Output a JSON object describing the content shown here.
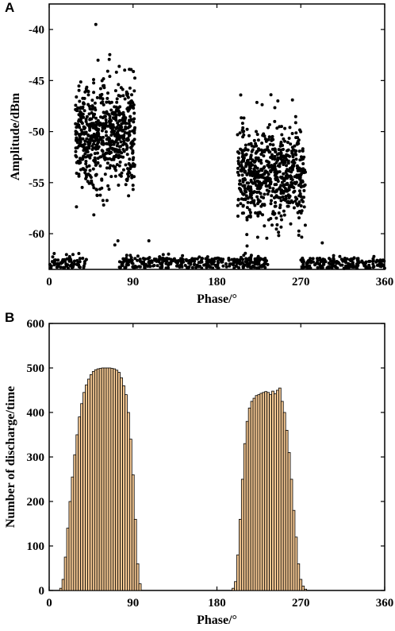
{
  "chart_data": [
    {
      "panel": "A",
      "type": "scatter",
      "xlabel": "Phase/°",
      "ylabel": "Amplitude/dBm",
      "xlim": [
        0,
        360
      ],
      "ylim": [
        -63.5,
        -37.5
      ],
      "xticks": [
        0,
        90,
        180,
        270,
        360
      ],
      "yticks": [
        -40,
        -45,
        -50,
        -55,
        -60
      ],
      "color": "#000000",
      "clusters": [
        {
          "x_range": [
            28,
            92
          ],
          "y_center": -50.2,
          "y_spread": 2.6,
          "count": 650
        },
        {
          "x_range": [
            202,
            275
          ],
          "y_center": -54.3,
          "y_spread": 2.3,
          "count": 650
        },
        {
          "x_range": [
            0,
            360
          ],
          "y_center": -62.9,
          "y_spread": 0.25,
          "count": 700,
          "gaps": [
            [
              40,
              75
            ],
            [
              235,
              270
            ]
          ]
        }
      ],
      "outliers": [
        [
          50,
          -39.5
        ],
        [
          86,
          -43.9
        ],
        [
          238,
          -46.4
        ],
        [
          261,
          -46.9
        ],
        [
          107,
          -60.7
        ],
        [
          293,
          -60.9
        ]
      ]
    },
    {
      "panel": "B",
      "type": "bar",
      "xlabel": "Phase/°",
      "ylabel": "Number of discharge/time",
      "xlim": [
        0,
        360
      ],
      "ylim": [
        0,
        600
      ],
      "xticks": [
        0,
        90,
        180,
        270,
        360
      ],
      "yticks": [
        0,
        100,
        200,
        300,
        400,
        500,
        600
      ],
      "bin_width": 2.5,
      "bar_fill": "#f5c893",
      "bar_stroke": "#000000",
      "x": [
        12.5,
        15,
        17.5,
        20,
        22.5,
        25,
        27.5,
        30,
        32.5,
        35,
        37.5,
        40,
        42.5,
        45,
        47.5,
        50,
        52.5,
        55,
        57.5,
        60,
        62.5,
        65,
        67.5,
        70,
        72.5,
        75,
        77.5,
        80,
        82.5,
        85,
        87.5,
        90,
        92.5,
        95,
        97.5,
        197.5,
        200,
        202.5,
        205,
        207.5,
        210,
        212.5,
        215,
        217.5,
        220,
        222.5,
        225,
        227.5,
        230,
        232.5,
        235,
        237.5,
        240,
        242.5,
        245,
        247.5,
        250,
        252.5,
        255,
        257.5,
        260,
        262.5,
        265,
        267.5,
        270,
        272.5,
        275
      ],
      "values": [
        5,
        25,
        75,
        140,
        200,
        255,
        305,
        350,
        390,
        420,
        445,
        462,
        475,
        485,
        492,
        496,
        498,
        499,
        500,
        500,
        500,
        500,
        499,
        498,
        495,
        490,
        478,
        460,
        440,
        400,
        340,
        260,
        160,
        60,
        15,
        5,
        20,
        80,
        160,
        250,
        330,
        380,
        410,
        425,
        432,
        438,
        440,
        443,
        445,
        447,
        445,
        440,
        448,
        442,
        450,
        455,
        425,
        400,
        360,
        310,
        250,
        180,
        120,
        60,
        25,
        10,
        3
      ]
    }
  ]
}
